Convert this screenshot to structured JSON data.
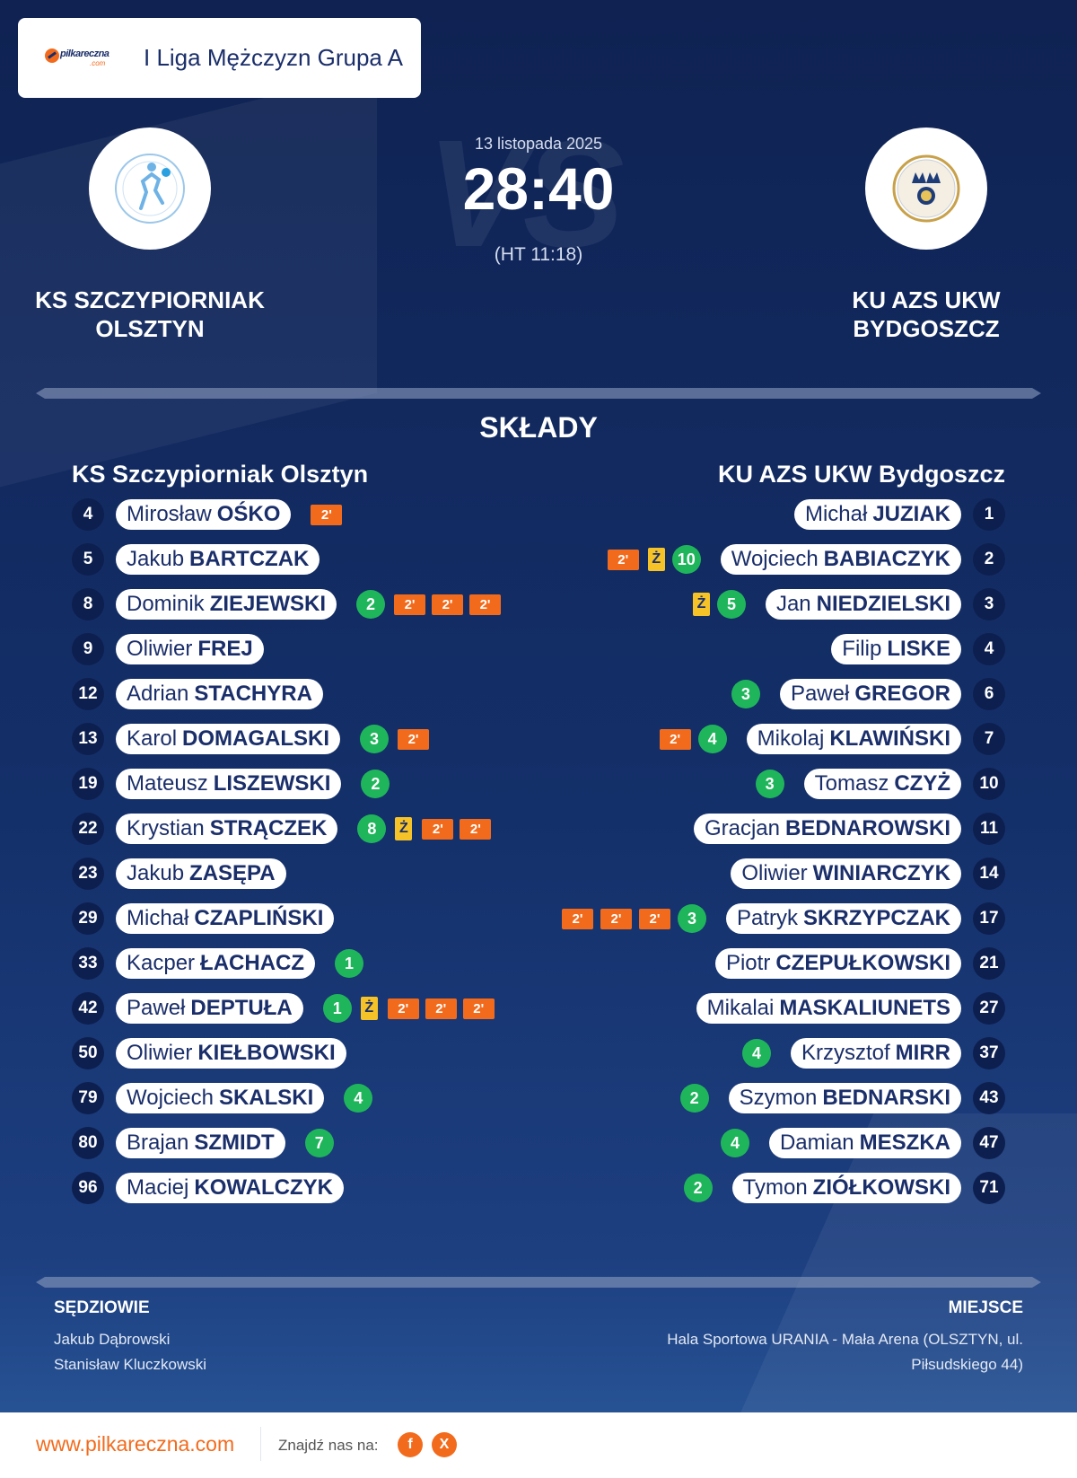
{
  "header": {
    "league": "I Liga Mężczyzn Grupa A",
    "logo_text": "pilkareczna",
    "logo_sub": ".com"
  },
  "match": {
    "date": "13 listopada 2025",
    "score": "28:40",
    "halftime": "(HT 11:18)"
  },
  "home_team": {
    "name_line1": "KS SZCZYPIORNIAK",
    "name_line2": "OLSZTYN",
    "name": "KS Szczypiorniak Olsztyn"
  },
  "away_team": {
    "name_line1": "KU AZS UKW",
    "name_line2": "BYDGOSZCZ",
    "name": "KU AZS UKW Bydgoszcz"
  },
  "squads_title": "SKŁADY",
  "yellow_label": "Ż",
  "suspension_label": "2'",
  "home_players": [
    {
      "number": "4",
      "first": "Mirosław",
      "last": "OŚKO",
      "goals": null,
      "yellow": 0,
      "suspensions": 1
    },
    {
      "number": "5",
      "first": "Jakub",
      "last": "BARTCZAK",
      "goals": null,
      "yellow": 0,
      "suspensions": 0
    },
    {
      "number": "8",
      "first": "Dominik",
      "last": "ZIEJEWSKI",
      "goals": "2",
      "yellow": 0,
      "suspensions": 3
    },
    {
      "number": "9",
      "first": "Oliwier",
      "last": "FREJ",
      "goals": null,
      "yellow": 0,
      "suspensions": 0
    },
    {
      "number": "12",
      "first": "Adrian",
      "last": "STACHYRA",
      "goals": null,
      "yellow": 0,
      "suspensions": 0
    },
    {
      "number": "13",
      "first": "Karol",
      "last": "DOMAGALSKI",
      "goals": "3",
      "yellow": 0,
      "suspensions": 1
    },
    {
      "number": "19",
      "first": "Mateusz",
      "last": "LISZEWSKI",
      "goals": "2",
      "yellow": 0,
      "suspensions": 0
    },
    {
      "number": "22",
      "first": "Krystian",
      "last": "STRĄCZEK",
      "goals": "8",
      "yellow": 1,
      "suspensions": 2
    },
    {
      "number": "23",
      "first": "Jakub",
      "last": "ZASĘPA",
      "goals": null,
      "yellow": 0,
      "suspensions": 0
    },
    {
      "number": "29",
      "first": "Michał",
      "last": "CZAPLIŃSKI",
      "goals": null,
      "yellow": 0,
      "suspensions": 0
    },
    {
      "number": "33",
      "first": "Kacper",
      "last": "ŁACHACZ",
      "goals": "1",
      "yellow": 0,
      "suspensions": 0
    },
    {
      "number": "42",
      "first": "Paweł",
      "last": "DEPTUŁA",
      "goals": "1",
      "yellow": 1,
      "suspensions": 3
    },
    {
      "number": "50",
      "first": "Oliwier",
      "last": "KIEŁBOWSKI",
      "goals": null,
      "yellow": 0,
      "suspensions": 0
    },
    {
      "number": "79",
      "first": "Wojciech",
      "last": "SKALSKI",
      "goals": "4",
      "yellow": 0,
      "suspensions": 0
    },
    {
      "number": "80",
      "first": "Brajan",
      "last": "SZMIDT",
      "goals": "7",
      "yellow": 0,
      "suspensions": 0
    },
    {
      "number": "96",
      "first": "Maciej",
      "last": "KOWALCZYK",
      "goals": null,
      "yellow": 0,
      "suspensions": 0
    }
  ],
  "away_players": [
    {
      "number": "1",
      "first": "Michał",
      "last": "JUZIAK",
      "goals": null,
      "yellow": 0,
      "suspensions": 0
    },
    {
      "number": "2",
      "first": "Wojciech",
      "last": "BABIACZYK",
      "goals": "10",
      "yellow": 1,
      "suspensions": 1
    },
    {
      "number": "3",
      "first": "Jan",
      "last": "NIEDZIELSKI",
      "goals": "5",
      "yellow": 1,
      "suspensions": 0
    },
    {
      "number": "4",
      "first": "Filip",
      "last": "LISKE",
      "goals": null,
      "yellow": 0,
      "suspensions": 0
    },
    {
      "number": "6",
      "first": "Paweł",
      "last": "GREGOR",
      "goals": "3",
      "yellow": 0,
      "suspensions": 0
    },
    {
      "number": "7",
      "first": "Mikolaj",
      "last": "KLAWIŃSKI",
      "goals": "4",
      "yellow": 0,
      "suspensions": 1
    },
    {
      "number": "10",
      "first": "Tomasz",
      "last": "CZYŻ",
      "goals": "3",
      "yellow": 0,
      "suspensions": 0
    },
    {
      "number": "11",
      "first": "Gracjan",
      "last": "BEDNAROWSKI",
      "goals": null,
      "yellow": 0,
      "suspensions": 0
    },
    {
      "number": "14",
      "first": "Oliwier",
      "last": "WINIARCZYK",
      "goals": null,
      "yellow": 0,
      "suspensions": 0
    },
    {
      "number": "17",
      "first": "Patryk",
      "last": "SKRZYPCZAK",
      "goals": "3",
      "yellow": 0,
      "suspensions": 3
    },
    {
      "number": "21",
      "first": "Piotr",
      "last": "CZEPUŁKOWSKI",
      "goals": null,
      "yellow": 0,
      "suspensions": 0
    },
    {
      "number": "27",
      "first": "Mikalai",
      "last": "MASKALIUNETS",
      "goals": null,
      "yellow": 0,
      "suspensions": 0
    },
    {
      "number": "37",
      "first": "Krzysztof",
      "last": "MIRR",
      "goals": "4",
      "yellow": 0,
      "suspensions": 0
    },
    {
      "number": "43",
      "first": "Szymon",
      "last": "BEDNARSKI",
      "goals": "2",
      "yellow": 0,
      "suspensions": 0
    },
    {
      "number": "47",
      "first": "Damian",
      "last": "MESZKA",
      "goals": "4",
      "yellow": 0,
      "suspensions": 0
    },
    {
      "number": "71",
      "first": "Tymon",
      "last": "ZIÓŁKOWSKI",
      "goals": "2",
      "yellow": 0,
      "suspensions": 0
    }
  ],
  "referees": {
    "title": "SĘDZIOWIE",
    "names": [
      "Jakub Dąbrowski",
      "Stanisław Kluczkowski"
    ]
  },
  "venue": {
    "title": "MIEJSCE",
    "line1": "Hala Sportowa URANIA - Mała Arena (OLSZTYN, ul.",
    "line2": "Piłsudskiego 44)"
  },
  "footer": {
    "site": "www.pilkareczna.com",
    "find_us": "Znajdź nas na:",
    "facebook_glyph": "f",
    "x_glyph": "X"
  },
  "colors": {
    "background": "#0f2252",
    "goal": "#1fb65b",
    "yellow_card": "#f5c327",
    "suspension": "#f26b1d",
    "accent": "#f26b1d"
  },
  "icons": {
    "home_crest": "handball-player-crest-icon",
    "away_crest": "crowns-university-crest-icon",
    "facebook": "facebook-icon",
    "x": "x-icon"
  }
}
